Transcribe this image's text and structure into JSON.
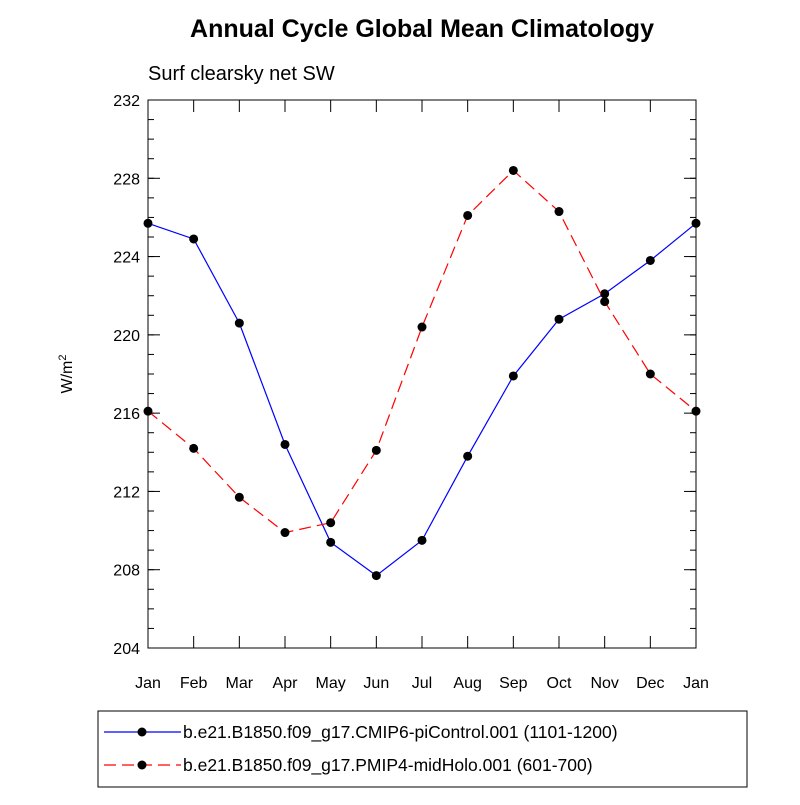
{
  "chart_data": {
    "type": "line",
    "title": "Annual Cycle Global Mean Climatology",
    "subtitle": "Surf clearsky net SW",
    "xlabel": "",
    "ylabel": "W/m",
    "ylabel_superscript": "2",
    "categories": [
      "Jan",
      "Feb",
      "Mar",
      "Apr",
      "May",
      "Jun",
      "Jul",
      "Aug",
      "Sep",
      "Oct",
      "Nov",
      "Dec",
      "Jan"
    ],
    "ylim": [
      204,
      232
    ],
    "yticks": [
      "204",
      "208",
      "212",
      "216",
      "220",
      "224",
      "228",
      "232"
    ],
    "grid": false,
    "legend_position": "bottom",
    "series": [
      {
        "name": "b.e21.B1850.f09_g17.CMIP6-piControl.001 (1101-1200)",
        "color": "#0000ff",
        "dash": "solid",
        "marker": "filled-circle",
        "values": [
          225.7,
          224.9,
          220.6,
          214.4,
          209.4,
          207.7,
          209.5,
          213.8,
          217.9,
          220.8,
          222.1,
          223.8,
          225.7
        ]
      },
      {
        "name": "b.e21.B1850.f09_g17.PMIP4-midHolo.001 (601-700)",
        "color": "#ff0000",
        "dash": "dashed",
        "marker": "filled-circle",
        "values": [
          216.1,
          214.2,
          211.7,
          209.9,
          210.4,
          214.1,
          220.4,
          226.1,
          228.4,
          226.3,
          221.7,
          218.0,
          216.1
        ]
      }
    ]
  }
}
